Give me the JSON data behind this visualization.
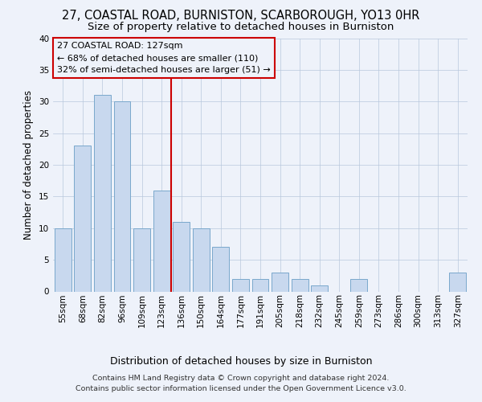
{
  "title1": "27, COASTAL ROAD, BURNISTON, SCARBOROUGH, YO13 0HR",
  "title2": "Size of property relative to detached houses in Burniston",
  "xlabel": "Distribution of detached houses by size in Burniston",
  "ylabel": "Number of detached properties",
  "categories": [
    "55sqm",
    "68sqm",
    "82sqm",
    "96sqm",
    "109sqm",
    "123sqm",
    "136sqm",
    "150sqm",
    "164sqm",
    "177sqm",
    "191sqm",
    "205sqm",
    "218sqm",
    "232sqm",
    "245sqm",
    "259sqm",
    "273sqm",
    "286sqm",
    "300sqm",
    "313sqm",
    "327sqm"
  ],
  "values": [
    10,
    23,
    31,
    30,
    10,
    16,
    11,
    10,
    7,
    2,
    2,
    3,
    2,
    1,
    0,
    2,
    0,
    0,
    0,
    0,
    3
  ],
  "bar_color": "#c8d8ee",
  "bar_edge_color": "#7aa8cc",
  "vline_index": 5,
  "vline_color": "#cc0000",
  "ylim": [
    0,
    40
  ],
  "annotation_line1": "27 COASTAL ROAD: 127sqm",
  "annotation_line2": "← 68% of detached houses are smaller (110)",
  "annotation_line3": "32% of semi-detached houses are larger (51) →",
  "footer_line1": "Contains HM Land Registry data © Crown copyright and database right 2024.",
  "footer_line2": "Contains public sector information licensed under the Open Government Licence v3.0.",
  "title1_fontsize": 10.5,
  "title2_fontsize": 9.5,
  "xlabel_fontsize": 9,
  "ylabel_fontsize": 8.5,
  "tick_fontsize": 7.5,
  "footer_fontsize": 6.8,
  "annotation_fontsize": 8,
  "background_color": "#eef2fa"
}
